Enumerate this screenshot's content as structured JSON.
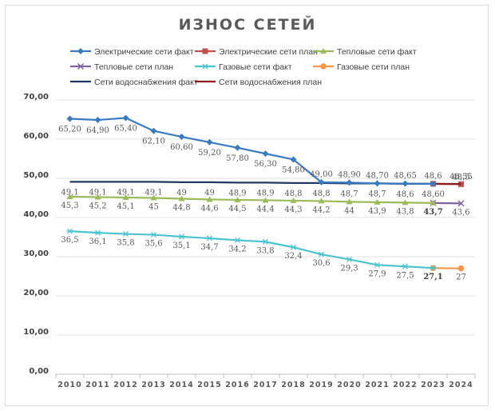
{
  "chart_data": {
    "type": "line",
    "title": "ИЗНОС СЕТЕЙ",
    "xlabel": "",
    "ylabel": "",
    "ylim": [
      0,
      70
    ],
    "y_ticks": [
      "0,00",
      "10,00",
      "20,00",
      "30,00",
      "40,00",
      "50,00",
      "60,00",
      "70,00"
    ],
    "y_tick_values": [
      0,
      10,
      20,
      30,
      40,
      50,
      60,
      70
    ],
    "categories": [
      "2010",
      "2011",
      "2012",
      "2013",
      "2014",
      "2015",
      "2016",
      "2017",
      "2018",
      "2019",
      "2020",
      "2021",
      "2022",
      "2023",
      "2024"
    ],
    "grid": "horizontal",
    "legend_position": "top",
    "series": [
      {
        "name": "Электрические сети факт",
        "color": "#3a7bbf",
        "marker": "diamond",
        "values": [
          65.2,
          64.9,
          65.4,
          62.1,
          60.6,
          59.2,
          57.8,
          56.3,
          54.8,
          49.0,
          48.9,
          48.7,
          48.65,
          48.6,
          null
        ],
        "labels": [
          "65,20",
          "64,90",
          "65,40",
          "62,10",
          "60,60",
          "59,20",
          "57,80",
          "56,30",
          "54,80",
          "49,00",
          "48,90",
          "48,70",
          "48,65",
          "48,6",
          null
        ]
      },
      {
        "name": "Электрические сети план",
        "color": "#c0504d",
        "marker": "square",
        "values": [
          null,
          null,
          null,
          null,
          null,
          null,
          null,
          null,
          null,
          null,
          null,
          null,
          null,
          48.6,
          48.5
        ],
        "labels": [
          null,
          null,
          null,
          null,
          null,
          null,
          null,
          null,
          null,
          null,
          null,
          null,
          null,
          null,
          "48,5"
        ]
      },
      {
        "name": "Тепловые сети факт",
        "color": "#9bbb59",
        "marker": "triangle",
        "values": [
          45.3,
          45.2,
          45.1,
          45.0,
          44.8,
          44.6,
          44.5,
          44.4,
          44.3,
          44.2,
          44.0,
          43.9,
          43.8,
          43.7,
          null
        ],
        "labels": [
          "45,3",
          "45,2",
          "45,1",
          "45",
          "44,8",
          "44,6",
          "44,5",
          "44,4",
          "44,3",
          "44,2",
          "44",
          "43,9",
          "43,8",
          "43,7",
          null
        ]
      },
      {
        "name": "Тепловые сети план",
        "color": "#8064a2",
        "marker": "x",
        "values": [
          null,
          null,
          null,
          null,
          null,
          null,
          null,
          null,
          null,
          null,
          null,
          null,
          null,
          43.7,
          43.6
        ],
        "labels": [
          null,
          null,
          null,
          null,
          null,
          null,
          null,
          null,
          null,
          null,
          null,
          null,
          null,
          null,
          "43,6"
        ]
      },
      {
        "name": "Газовые сети факт",
        "color": "#4bc4d0",
        "marker": "star",
        "values": [
          36.5,
          36.1,
          35.8,
          35.6,
          35.1,
          34.7,
          34.2,
          33.8,
          32.4,
          30.6,
          29.3,
          27.9,
          27.5,
          27.1,
          null
        ],
        "labels": [
          "36,5",
          "36,1",
          "35,8",
          "35,6",
          "35,1",
          "34,7",
          "34,2",
          "33,8",
          "32,4",
          "30,6",
          "29,3",
          "27,9",
          "27,5",
          "27,1",
          null
        ]
      },
      {
        "name": "Газовые сети план",
        "color": "#f79646",
        "marker": "circle",
        "values": [
          null,
          null,
          null,
          null,
          null,
          null,
          null,
          null,
          null,
          null,
          null,
          null,
          null,
          27.1,
          27.0
        ],
        "labels": [
          null,
          null,
          null,
          null,
          null,
          null,
          null,
          null,
          null,
          null,
          null,
          null,
          null,
          null,
          "27"
        ]
      },
      {
        "name": "Сети водоснабжения факт",
        "color": "#1f3864",
        "marker": "dash",
        "values": [
          49.1,
          49.1,
          49.1,
          49.1,
          49.0,
          49.0,
          48.9,
          48.9,
          48.8,
          48.8,
          48.7,
          48.7,
          48.6,
          48.6,
          null
        ],
        "labels": [
          "49,1",
          "49,1",
          "49,1",
          "49,1",
          "49",
          "49",
          "48,9",
          "48,9",
          "48,8",
          "48,8",
          "48,7",
          "48,7",
          "48,6",
          "48,60",
          null
        ]
      },
      {
        "name": "Сети водоснабжения план",
        "color": "#8b1a1a",
        "marker": "dash",
        "values": [
          null,
          null,
          null,
          null,
          null,
          null,
          null,
          null,
          null,
          null,
          null,
          null,
          null,
          48.6,
          48.55
        ],
        "labels": [
          null,
          null,
          null,
          null,
          null,
          null,
          null,
          null,
          null,
          null,
          null,
          null,
          null,
          null,
          "48,55"
        ]
      }
    ]
  }
}
